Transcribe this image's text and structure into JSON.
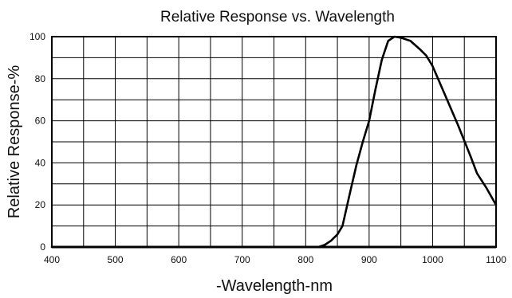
{
  "chart_data": {
    "type": "line",
    "title": "Relative Response vs. Wavelength",
    "xlabel": "-Wavelength-nm",
    "ylabel": "Relative Response-%",
    "xlim": [
      400,
      1100
    ],
    "ylim": [
      0,
      100
    ],
    "x_ticks": [
      400,
      500,
      600,
      700,
      800,
      900,
      1000,
      1100
    ],
    "y_ticks": [
      0,
      20,
      40,
      60,
      80,
      100
    ],
    "x_tick_labels": [
      "400",
      "500",
      "600",
      "700",
      "800",
      "900",
      "1000",
      "1100"
    ],
    "y_tick_labels": [
      "0",
      "20",
      "40",
      "60",
      "80",
      "100"
    ],
    "grid": true,
    "x_grid_step": 50,
    "y_grid_step": 10,
    "series": [
      {
        "x": [
          400,
          800,
          820,
          830,
          840,
          850,
          858,
          870,
          880,
          890,
          900,
          910,
          920,
          930,
          940,
          950,
          965,
          980,
          990,
          1000,
          1020,
          1040,
          1060,
          1070,
          1085,
          1100
        ],
        "y": [
          0,
          0,
          0,
          1,
          3,
          6,
          10,
          26,
          39,
          50,
          60,
          75,
          89,
          98,
          100,
          99.5,
          98,
          94,
          91,
          86,
          72,
          58,
          43,
          35,
          28,
          20
        ]
      }
    ]
  }
}
